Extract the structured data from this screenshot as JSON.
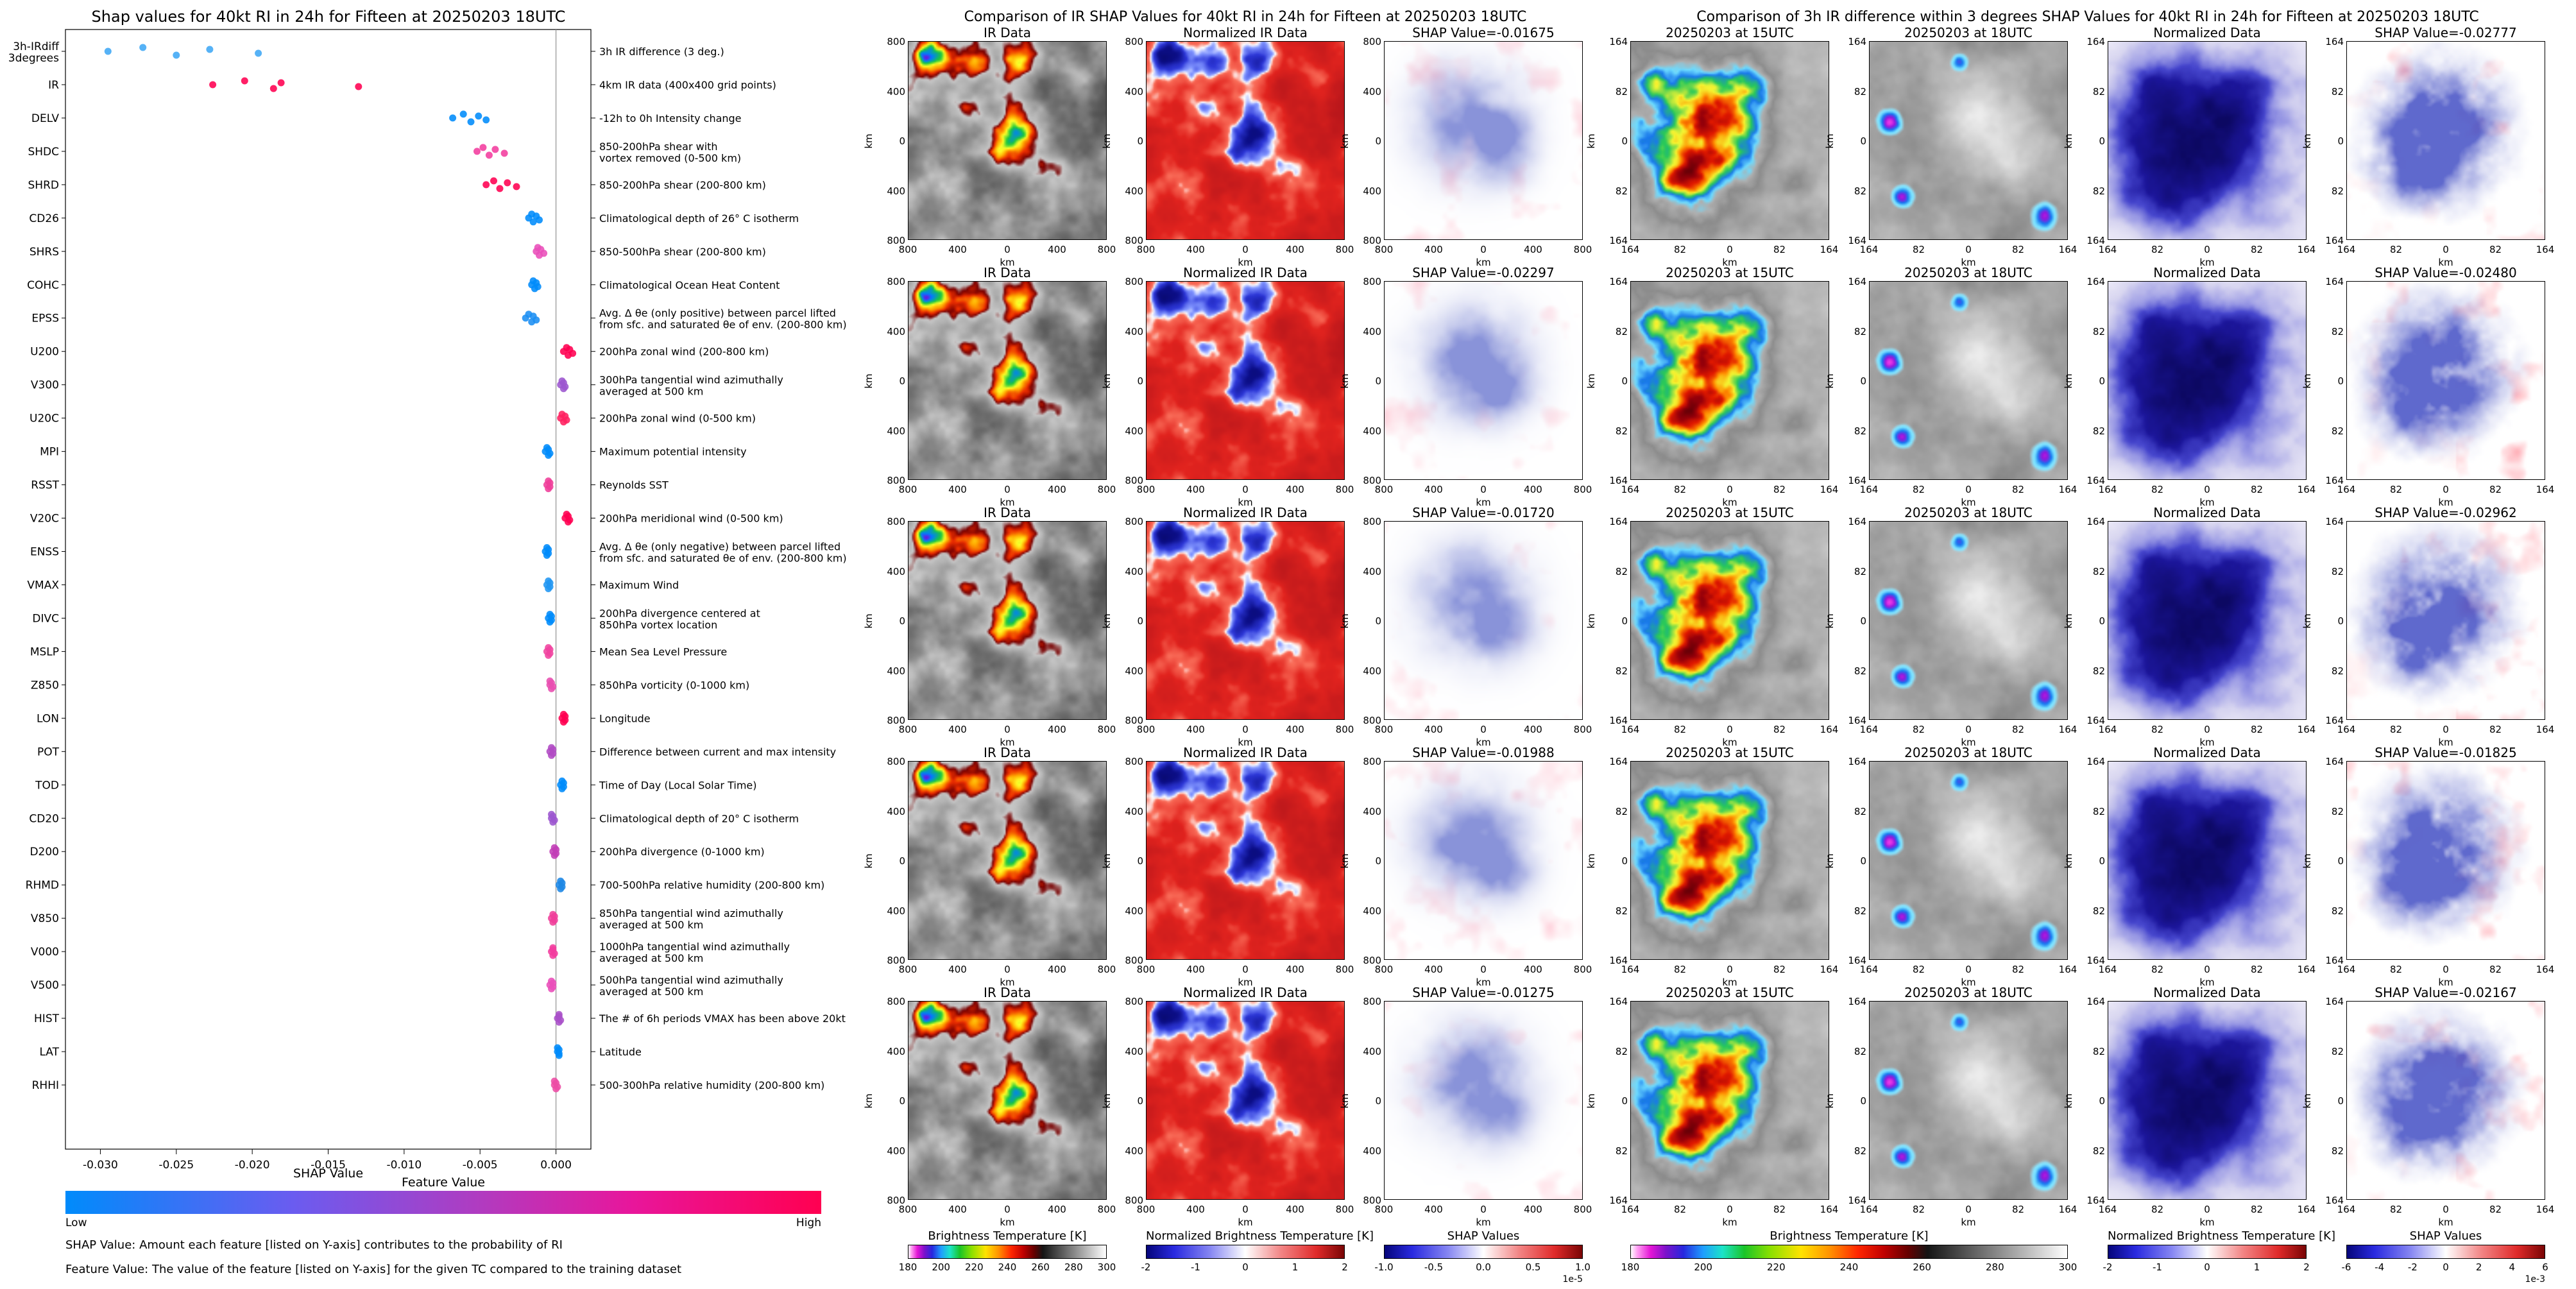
{
  "chart_data": {
    "beeswarm": {
      "type": "scatter",
      "title": "Shap values for 40kt RI in 24h for Fifteen at 20250203 18UTC",
      "xlabel": "SHAP Value",
      "xlim": [
        -0.0323,
        0.0023
      ],
      "x_ticks": [
        -0.03,
        -0.025,
        -0.02,
        -0.015,
        -0.01,
        -0.005,
        0.0
      ],
      "colorbar": {
        "title": "Feature Value",
        "low_label": "Low",
        "high_label": "High",
        "colors": [
          "#008bfb",
          "#8a41c9",
          "#d81fa0",
          "#ff0051"
        ]
      },
      "footnote_1": "SHAP Value: Amount each feature [listed on Y-axis] contributes to the probability of RI",
      "footnote_2": "Feature Value: The value of the feature [listed on Y-axis] for the given TC compared to the training dataset",
      "features": [
        {
          "name": "3h-IRdiff\n3degrees",
          "description": "3h IR difference (3 deg.)",
          "color": "#3fa7f5",
          "shap": [
            -0.0295,
            -0.0272,
            -0.025,
            -0.0228,
            -0.0196
          ]
        },
        {
          "name": "IR",
          "description": "4km IR data (400x400 grid points)",
          "color": "#ff0051",
          "shap": [
            -0.0226,
            -0.0205,
            -0.0186,
            -0.0181,
            -0.013
          ]
        },
        {
          "name": "DELV",
          "description": "-12h to 0h Intensity change",
          "color": "#008bfb",
          "shap": [
            -0.0068,
            -0.0061,
            -0.0056,
            -0.0051,
            -0.0046
          ]
        },
        {
          "name": "SHDC",
          "description": "850-200hPa shear with\nvortex removed (0-500 km)",
          "color": "#f23c9e",
          "shap": [
            -0.0052,
            -0.0048,
            -0.0044,
            -0.004,
            -0.0034
          ]
        },
        {
          "name": "SHRD",
          "description": "850-200hPa shear (200-800 km)",
          "color": "#ff0051",
          "shap": [
            -0.0046,
            -0.0041,
            -0.0037,
            -0.0032,
            -0.0026
          ]
        },
        {
          "name": "CD26",
          "description": "Climatological depth of 26° C isotherm",
          "color": "#008bfb",
          "shap": [
            -0.0018,
            -0.0016,
            -0.0015,
            -0.0013,
            -0.0011
          ]
        },
        {
          "name": "SHRS",
          "description": "850-500hPa shear (200-800 km)",
          "color": "#e94fb9",
          "shap": [
            -0.0013,
            -0.0012,
            -0.0011,
            -0.001,
            -0.0008
          ]
        },
        {
          "name": "COHC",
          "description": "Climatological Ocean Heat Content",
          "color": "#008bfb",
          "shap": [
            -0.0016,
            -0.0015,
            -0.0014,
            -0.0013,
            -0.0012
          ]
        },
        {
          "name": "EPSS",
          "description": "Avg. Δ θe (only positive) between parcel lifted\nfrom sfc. and saturated θe of env. (200-800 km)",
          "color": "#1b8ef2",
          "shap": [
            -0.002,
            -0.0018,
            -0.0016,
            -0.0015,
            -0.0013
          ]
        },
        {
          "name": "U200",
          "description": "200hPa zonal wind (200-800 km)",
          "color": "#ff0051",
          "shap": [
            0.0005,
            0.0007,
            0.0008,
            0.0009,
            0.0011
          ]
        },
        {
          "name": "V300",
          "description": "300hPa tangential wind azimuthally\naveraged at 500 km",
          "color": "#9c57cf",
          "shap": [
            0.0003,
            0.0004,
            0.0005,
            0.0005,
            0.0006
          ]
        },
        {
          "name": "U20C",
          "description": "200hPa zonal wind (0-500 km)",
          "color": "#ff2060",
          "shap": [
            0.0003,
            0.0004,
            0.0005,
            0.0006,
            0.0007
          ]
        },
        {
          "name": "MPI",
          "description": "Maximum potential intensity",
          "color": "#008bfb",
          "shap": [
            -0.0007,
            -0.0006,
            -0.0005,
            -0.0005,
            -0.0004
          ]
        },
        {
          "name": "RSST",
          "description": "Reynolds SST",
          "color": "#ef3f9a",
          "shap": [
            -0.0006,
            -0.0005,
            -0.0005,
            -0.0004,
            -0.0004
          ]
        },
        {
          "name": "V20C",
          "description": "200hPa meridional wind (0-500 km)",
          "color": "#ff0051",
          "shap": [
            0.0006,
            0.0007,
            0.0008,
            0.0008,
            0.0009
          ]
        },
        {
          "name": "ENSS",
          "description": "Avg. Δ θe (only negative) between parcel lifted\nfrom sfc. and saturated θe of env. (200-800 km)",
          "color": "#008bfb",
          "shap": [
            -0.0007,
            -0.0006,
            -0.0006,
            -0.0005,
            -0.0005
          ]
        },
        {
          "name": "VMAX",
          "description": "Maximum Wind",
          "color": "#2196f3",
          "shap": [
            -0.0006,
            -0.0005,
            -0.0005,
            -0.0004,
            -0.0004
          ]
        },
        {
          "name": "DIVC",
          "description": "200hPa divergence centered at\n850hPa vortex location",
          "color": "#008bfb",
          "shap": [
            -0.0005,
            -0.0004,
            -0.0004,
            -0.0003,
            -0.0003
          ]
        },
        {
          "name": "MSLP",
          "description": "Mean Sea Level Pressure",
          "color": "#f0439f",
          "shap": [
            -0.0006,
            -0.0005,
            -0.0005,
            -0.0004,
            -0.0004
          ]
        },
        {
          "name": "Z850",
          "description": "850hPa vorticity (0-1000 km)",
          "color": "#e84fb0",
          "shap": [
            -0.0004,
            -0.0004,
            -0.0003,
            -0.0003,
            -0.0002
          ]
        },
        {
          "name": "LON",
          "description": "Longitude",
          "color": "#ff0051",
          "shap": [
            0.0004,
            0.0005,
            0.0005,
            0.0006,
            0.0006
          ]
        },
        {
          "name": "POT",
          "description": "Difference between current and max intensity",
          "color": "#b04ac4",
          "shap": [
            -0.0004,
            -0.0003,
            -0.0003,
            -0.0002,
            -0.0002
          ]
        },
        {
          "name": "TOD",
          "description": "Time of Day (Local Solar Time)",
          "color": "#008bfb",
          "shap": [
            0.0003,
            0.0004,
            0.0004,
            0.0005,
            0.0005
          ]
        },
        {
          "name": "CD20",
          "description": "Climatological depth of 20° C isotherm",
          "color": "#9c57cf",
          "shap": [
            -0.0003,
            -0.0003,
            -0.0002,
            -0.0002,
            -0.0001
          ]
        },
        {
          "name": "D200",
          "description": "200hPa divergence (0-1000 km)",
          "color": "#c13db6",
          "shap": [
            -0.0002,
            -0.0001,
            -0.0001,
            0.0,
            0.0
          ]
        },
        {
          "name": "RHMD",
          "description": "700-500hPa relative humidity (200-800 km)",
          "color": "#1e88e5",
          "shap": [
            0.0002,
            0.0003,
            0.0003,
            0.0004,
            0.0004
          ]
        },
        {
          "name": "V850",
          "description": "850hPa tangential wind azimuthally\naveraged at 500 km",
          "color": "#ef3f9a",
          "shap": [
            -0.0003,
            -0.0002,
            -0.0002,
            -0.0001,
            -0.0001
          ]
        },
        {
          "name": "V000",
          "description": "1000hPa tangential wind azimuthally\naveraged at 500 km",
          "color": "#f23c9e",
          "shap": [
            -0.0003,
            -0.0002,
            -0.0002,
            -0.0002,
            -0.0001
          ]
        },
        {
          "name": "V500",
          "description": "500hPa tangential wind azimuthally\naveraged at 500 km",
          "color": "#e94fb9",
          "shap": [
            -0.0004,
            -0.0003,
            -0.0003,
            -0.0002,
            -0.0002
          ]
        },
        {
          "name": "HIST",
          "description": "The # of 6h periods VMAX has been above 20kt",
          "color": "#a950c8",
          "shap": [
            0.0001,
            0.0002,
            0.0002,
            0.0002,
            0.0003
          ]
        },
        {
          "name": "LAT",
          "description": "Latitude",
          "color": "#008bfb",
          "shap": [
            0.0001,
            0.0001,
            0.0002,
            0.0002,
            0.0002
          ]
        },
        {
          "name": "RHHI",
          "description": "500-300hPa relative humidity (200-800 km)",
          "color": "#ed4da5",
          "shap": [
            -0.0001,
            -0.0001,
            0.0,
            0.0,
            0.0001
          ]
        }
      ]
    },
    "ir_comparison": {
      "type": "heatmap",
      "title": "Comparison of IR SHAP Values for 40kt RI in 24h for Fifteen at 20250203 18UTC",
      "column_titles": [
        "IR Data",
        "Normalized IR Data"
      ],
      "shap_title_prefix": "SHAP Value=",
      "row_shap_values": [
        -0.01675,
        -0.02297,
        -0.0172,
        -0.01988,
        -0.01275
      ],
      "axis_ticks": [
        "800",
        "400",
        "0",
        "400",
        "800"
      ],
      "axis_label": "km",
      "colorbars": [
        {
          "label": "Brightness Temperature [K]",
          "ticks": [
            "180",
            "200",
            "220",
            "240",
            "260",
            "280",
            "300"
          ]
        },
        {
          "label": "Normalized Brightness Temperature [K]",
          "ticks": [
            "-2",
            "-1",
            "0",
            "1",
            "2"
          ]
        },
        {
          "label": "SHAP Values",
          "ticks": [
            "-1.0",
            "-0.5",
            "0.0",
            "0.5",
            "1.0"
          ],
          "scale": "1e-5"
        }
      ]
    },
    "ir3_comparison": {
      "type": "heatmap",
      "title": "Comparison of 3h IR difference within 3 degrees SHAP Values for 40kt RI in 24h for Fifteen at 20250203 18UTC",
      "column_titles": [
        "20250203 at 15UTC",
        "20250203 at 18UTC",
        "Normalized Data"
      ],
      "shap_title_prefix": "SHAP Value=",
      "row_shap_values": [
        -0.02777,
        -0.0248,
        -0.02962,
        -0.01825,
        -0.02167
      ],
      "axis_ticks": [
        "164",
        "82",
        "0",
        "82",
        "164"
      ],
      "axis_label": "km",
      "colorbars": [
        {
          "label": "Brightness Temperature [K]",
          "ticks": [
            "180",
            "200",
            "220",
            "240",
            "260",
            "280",
            "300"
          ]
        },
        {
          "label": "Normalized Brightness Temperature [K]",
          "ticks": [
            "-2",
            "-1",
            "0",
            "1",
            "2"
          ]
        },
        {
          "label": "SHAP Values",
          "ticks": [
            "-6",
            "-4",
            "-2",
            "0",
            "2",
            "4",
            "6"
          ],
          "scale": "1e-3"
        }
      ]
    }
  }
}
